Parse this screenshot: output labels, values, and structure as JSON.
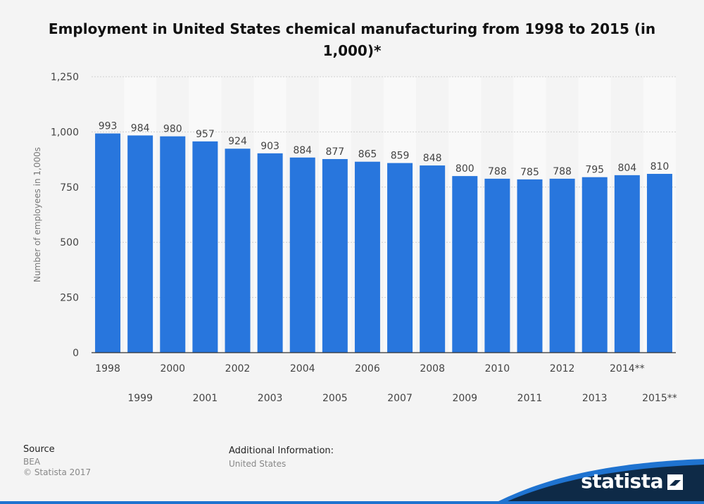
{
  "title": "Employment in United States chemical manufacturing from 1998 to 2015 (in 1,000)*",
  "source": {
    "heading": "Source",
    "value": "BEA",
    "copyright": "© Statista 2017"
  },
  "additional_info": {
    "heading": "Additional Information:",
    "value": "United States"
  },
  "brand": {
    "name": "statista",
    "icon": "statista-logo-icon"
  },
  "colors": {
    "bar": "#2876dd",
    "background": "#f4f4f4",
    "band": "#f9f9f9",
    "brand_dark": "#0e2a47",
    "brand_blue": "#1f73d0"
  },
  "chart_data": {
    "type": "bar",
    "title": "Employment in United States chemical manufacturing from 1998 to 2015 (in 1,000)*",
    "ylabel": "Number of employees in 1,000s",
    "xlabel": "",
    "ylim": [
      0,
      1250
    ],
    "yticks": [
      0,
      250,
      500,
      750,
      1000,
      1250
    ],
    "ytick_labels": [
      "0",
      "250",
      "500",
      "750",
      "1,000",
      "1,250"
    ],
    "grid": true,
    "categories": [
      "1998",
      "1999",
      "2000",
      "2001",
      "2002",
      "2003",
      "2004",
      "2005",
      "2006",
      "2007",
      "2008",
      "2009",
      "2010",
      "2011",
      "2012",
      "2013",
      "2014**",
      "2015**"
    ],
    "values": [
      993,
      984,
      980,
      957,
      924,
      903,
      884,
      877,
      865,
      859,
      848,
      800,
      788,
      785,
      788,
      795,
      804,
      810
    ]
  }
}
